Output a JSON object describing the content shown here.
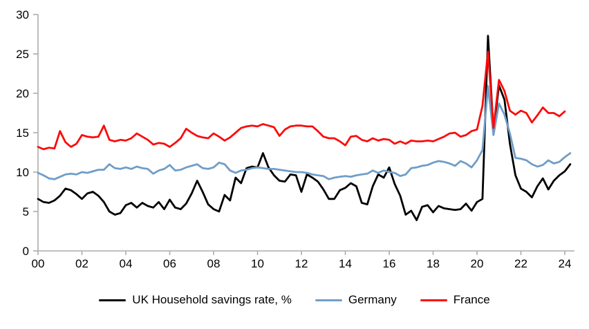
{
  "chart": {
    "title": "",
    "axis_color": "#ACACAC",
    "text_color": "#000000",
    "background": "#FFFFFF",
    "y_tick_labels": [
      "0",
      "5",
      "10",
      "15",
      "20",
      "25",
      "30"
    ],
    "x_tick_labels": [
      "00",
      "02",
      "04",
      "06",
      "08",
      "10",
      "12",
      "14",
      "16",
      "18",
      "20",
      "22",
      "24"
    ]
  },
  "chart_data": {
    "type": "line",
    "title": "",
    "xlabel": "",
    "ylabel": "",
    "x_start": 2000,
    "x_step": 0.25,
    "xlim": [
      2000,
      2024.45
    ],
    "ylim": [
      0,
      30
    ],
    "y_ticks": [
      0,
      5,
      10,
      15,
      20,
      25,
      30
    ],
    "x_ticks": [
      2000,
      2002,
      2004,
      2006,
      2008,
      2010,
      2012,
      2014,
      2016,
      2018,
      2020,
      2022,
      2024
    ],
    "grid": false,
    "legend_position": "bottom-center",
    "series": [
      {
        "name": "UK Household savings rate, %",
        "color": "#000000",
        "values": [
          6.6,
          6.2,
          6.1,
          6.4,
          7.0,
          7.9,
          7.7,
          7.2,
          6.6,
          7.3,
          7.5,
          7.0,
          6.2,
          5.0,
          4.6,
          4.8,
          5.8,
          6.1,
          5.5,
          6.1,
          5.7,
          5.5,
          6.2,
          5.3,
          6.5,
          5.5,
          5.3,
          6.0,
          7.3,
          8.9,
          7.5,
          5.9,
          5.3,
          5.0,
          7.1,
          6.4,
          9.3,
          8.6,
          10.5,
          10.7,
          10.6,
          12.4,
          10.6,
          9.6,
          8.9,
          8.8,
          9.7,
          9.6,
          7.5,
          9.7,
          9.3,
          8.8,
          7.8,
          6.6,
          6.6,
          7.7,
          8.0,
          8.6,
          8.2,
          6.1,
          5.9,
          8.2,
          9.7,
          9.3,
          10.6,
          8.5,
          7.0,
          4.6,
          5.1,
          3.9,
          5.6,
          5.8,
          4.9,
          5.7,
          5.4,
          5.3,
          5.2,
          5.3,
          6.0,
          5.1,
          6.2,
          6.6,
          27.3,
          15.2,
          21.0,
          19.2,
          13.6,
          9.6,
          7.9,
          7.5,
          6.8,
          8.2,
          9.2,
          7.8,
          8.9,
          9.6,
          10.1,
          11.0
        ]
      },
      {
        "name": "Germany",
        "color": "#6F9DC8",
        "values": [
          9.9,
          9.6,
          9.2,
          9.1,
          9.4,
          9.7,
          9.8,
          9.7,
          10.0,
          9.9,
          10.1,
          10.3,
          10.3,
          11.0,
          10.5,
          10.4,
          10.6,
          10.4,
          10.7,
          10.5,
          10.4,
          9.8,
          10.2,
          10.4,
          10.9,
          10.2,
          10.3,
          10.6,
          10.8,
          11.0,
          10.5,
          10.4,
          10.6,
          11.2,
          11.0,
          10.2,
          9.9,
          10.2,
          10.3,
          10.5,
          10.6,
          10.5,
          10.4,
          10.4,
          10.3,
          10.2,
          10.1,
          10.0,
          10.0,
          9.9,
          9.7,
          9.6,
          9.5,
          9.1,
          9.3,
          9.4,
          9.5,
          9.4,
          9.6,
          9.7,
          9.8,
          10.2,
          9.9,
          10.2,
          10.0,
          9.9,
          9.5,
          9.7,
          10.5,
          10.6,
          10.8,
          10.9,
          11.2,
          11.4,
          11.3,
          11.1,
          10.8,
          11.4,
          11.1,
          10.6,
          11.5,
          12.8,
          20.9,
          14.7,
          18.7,
          17.3,
          14.9,
          11.8,
          11.7,
          11.5,
          11.0,
          10.7,
          10.9,
          11.5,
          11.1,
          11.3,
          11.9,
          12.4
        ]
      },
      {
        "name": "France",
        "color": "#FA0B0A",
        "values": [
          13.2,
          12.9,
          13.1,
          13.0,
          15.2,
          13.8,
          13.2,
          13.6,
          14.7,
          14.5,
          14.4,
          14.5,
          15.9,
          14.1,
          13.9,
          14.1,
          14.0,
          14.3,
          14.9,
          14.5,
          14.1,
          13.5,
          13.7,
          13.6,
          13.2,
          13.7,
          14.3,
          15.5,
          15.0,
          14.6,
          14.4,
          14.3,
          14.9,
          14.5,
          14.0,
          14.4,
          15.0,
          15.6,
          15.8,
          15.9,
          15.8,
          16.1,
          15.9,
          15.7,
          14.6,
          15.4,
          15.8,
          15.9,
          15.9,
          15.8,
          15.8,
          15.2,
          14.5,
          14.3,
          14.3,
          13.9,
          13.4,
          14.5,
          14.6,
          14.1,
          13.9,
          14.3,
          14.0,
          14.2,
          14.1,
          13.6,
          13.9,
          13.6,
          14.0,
          13.9,
          13.9,
          14.0,
          13.9,
          14.2,
          14.5,
          14.9,
          15.0,
          14.5,
          14.7,
          15.2,
          15.4,
          18.4,
          25.3,
          15.6,
          21.7,
          20.3,
          17.8,
          17.3,
          17.8,
          17.5,
          16.3,
          17.2,
          18.2,
          17.5,
          17.5,
          17.1,
          17.7
        ]
      }
    ]
  }
}
